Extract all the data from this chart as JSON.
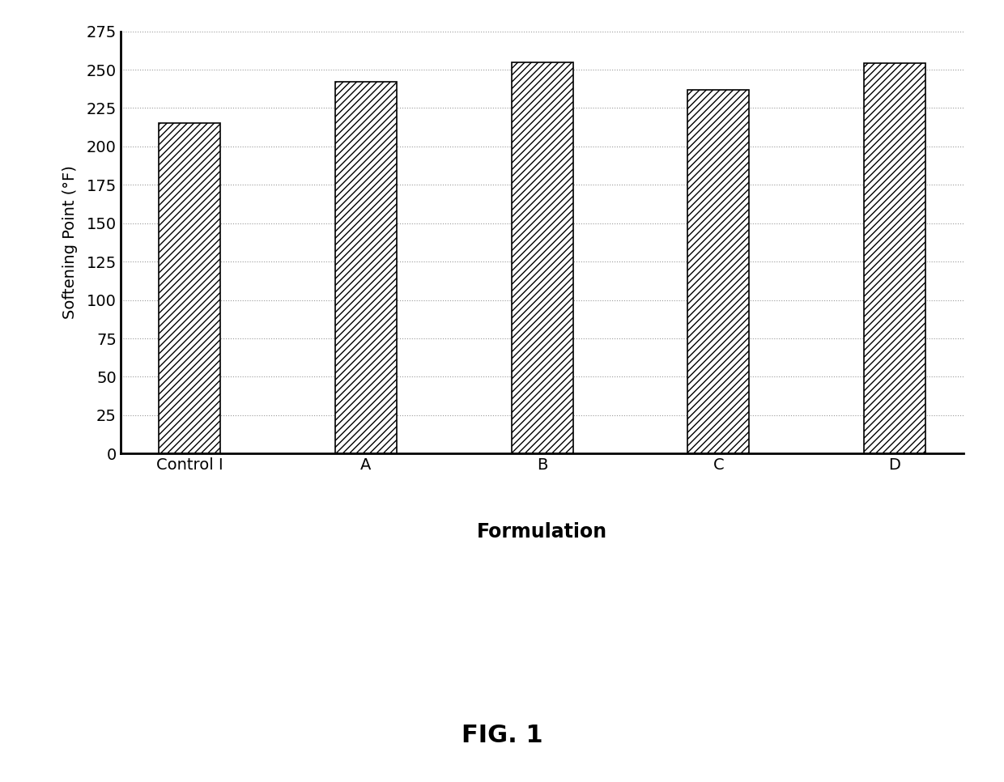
{
  "categories": [
    "Control I",
    "A",
    "B",
    "C",
    "D"
  ],
  "values": [
    215,
    242,
    255,
    237,
    254
  ],
  "xlabel": "Formulation",
  "ylabel": "Softening Point (°F)",
  "ylim": [
    0,
    275
  ],
  "yticks": [
    0,
    25,
    50,
    75,
    100,
    125,
    150,
    175,
    200,
    225,
    250,
    275
  ],
  "title": "FIG. 1",
  "background_color": "#ffffff",
  "bar_color": "#ffffff",
  "bar_edge_color": "#000000",
  "hatch": "////",
  "xlabel_fontsize": 17,
  "ylabel_fontsize": 14,
  "tick_fontsize": 14,
  "title_fontsize": 22,
  "grid_color": "#999999",
  "bar_width": 0.35
}
